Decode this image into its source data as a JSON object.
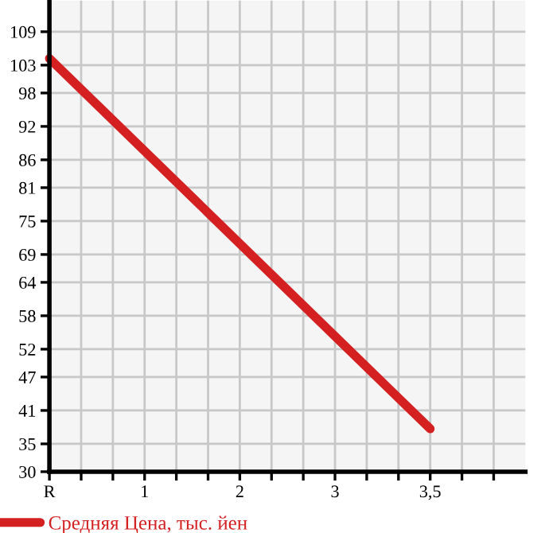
{
  "chart_data": {
    "type": "line",
    "categories": [
      "R",
      "1",
      "2",
      "3",
      "3,5"
    ],
    "series": [
      {
        "name": "Средняя Цена, тыс. йен",
        "color": "#d42020",
        "values": [
          104.2,
          null,
          null,
          null,
          37.7
        ]
      }
    ],
    "ylim": [
      30,
      114.6
    ],
    "yticks": [
      30,
      35,
      41,
      47,
      52,
      58,
      64,
      69,
      75,
      81,
      86,
      92,
      98,
      103,
      109
    ],
    "grid": true,
    "legend": "bottom left",
    "marker": "none",
    "line_style": "solid"
  }
}
